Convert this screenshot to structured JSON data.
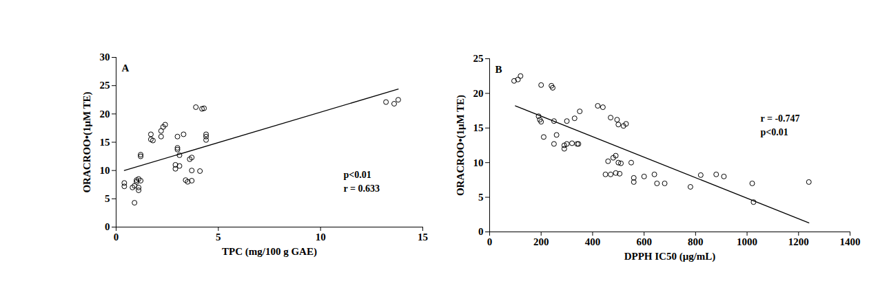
{
  "chart_data": [
    {
      "type": "scatter",
      "title": "A",
      "x_label": "TPC (mg/100 g GAE)",
      "y_label": "ORACROO•(1μM TE)",
      "color": "#000000",
      "marker": "circle",
      "grid": false,
      "x": [
        0.4,
        0.4,
        0.8,
        0.9,
        0.9,
        1.0,
        1.0,
        1.1,
        1.1,
        1.1,
        1.2,
        1.2,
        1.2,
        1.7,
        1.7,
        1.8,
        2.2,
        2.2,
        2.3,
        2.4,
        2.9,
        2.9,
        3.0,
        3.0,
        3.0,
        3.1,
        3.1,
        3.3,
        3.4,
        3.5,
        3.7,
        3.6,
        3.7,
        3.7,
        3.9,
        4.1,
        4.2,
        4.3,
        4.4,
        4.4,
        4.4,
        13.2,
        13.6,
        13.8
      ],
      "values": [
        7.8,
        7.2,
        7.0,
        4.3,
        7.3,
        8.0,
        8.3,
        7.0,
        6.5,
        8.5,
        8.2,
        12.8,
        12.5,
        16.4,
        15.5,
        15.3,
        16.0,
        17.0,
        17.7,
        18.1,
        10.3,
        11.0,
        13.7,
        14.0,
        16.0,
        10.8,
        12.7,
        16.4,
        8.3,
        8.0,
        8.2,
        12.0,
        12.3,
        10.0,
        21.2,
        9.9,
        20.9,
        21.0,
        15.4,
        16.0,
        16.4,
        22.1,
        21.8,
        22.5
      ],
      "trendline": {
        "x": [
          0.4,
          13.8
        ],
        "values": [
          10.0,
          24.4
        ],
        "line_style": "solid"
      },
      "annotations": [
        "r = 0.633",
        "p<0.01"
      ],
      "xlim": [
        0,
        15
      ],
      "xticks": [
        0,
        5,
        10,
        15
      ],
      "ylim": [
        0,
        30
      ],
      "yticks": [
        0,
        5,
        10,
        15,
        20,
        25,
        30
      ]
    },
    {
      "type": "scatter",
      "title": "B",
      "x_label": "DPPH IC50 (μg/mL)",
      "y_label": "ORACROO•(1μM TE)",
      "color": "#000000",
      "marker": "circle",
      "grid": false,
      "x": [
        95,
        110,
        120,
        190,
        195,
        200,
        200,
        210,
        240,
        245,
        250,
        250,
        260,
        290,
        290,
        300,
        300,
        320,
        330,
        340,
        345,
        350,
        420,
        440,
        450,
        460,
        470,
        470,
        480,
        490,
        490,
        495,
        500,
        500,
        505,
        510,
        520,
        530,
        550,
        560,
        560,
        600,
        640,
        650,
        680,
        780,
        820,
        880,
        910,
        1020,
        1025,
        1240
      ],
      "values": [
        21.8,
        22.0,
        22.5,
        16.7,
        16.2,
        15.9,
        21.2,
        13.7,
        21.1,
        20.8,
        16.0,
        12.7,
        14.0,
        12.5,
        12.0,
        12.7,
        16.0,
        12.8,
        16.4,
        12.7,
        12.7,
        17.4,
        18.2,
        18.0,
        8.3,
        10.2,
        8.3,
        16.5,
        10.7,
        11.0,
        8.5,
        16.2,
        15.5,
        10.0,
        8.4,
        9.9,
        15.3,
        15.6,
        10.0,
        7.8,
        7.2,
        8.0,
        8.3,
        7.0,
        7.0,
        6.5,
        8.2,
        8.3,
        8.0,
        7.0,
        4.3,
        7.2
      ],
      "trendline": {
        "x": [
          100,
          1240
        ],
        "values": [
          18.2,
          1.3
        ],
        "line_style": "solid"
      },
      "annotations": [
        "r = -0.747",
        "p<0.01"
      ],
      "xlim": [
        0,
        1400
      ],
      "xticks": [
        0,
        200,
        400,
        600,
        800,
        1000,
        1200,
        1400
      ],
      "ylim": [
        0,
        25
      ],
      "yticks": [
        0,
        5,
        10,
        15,
        20,
        25
      ]
    }
  ]
}
